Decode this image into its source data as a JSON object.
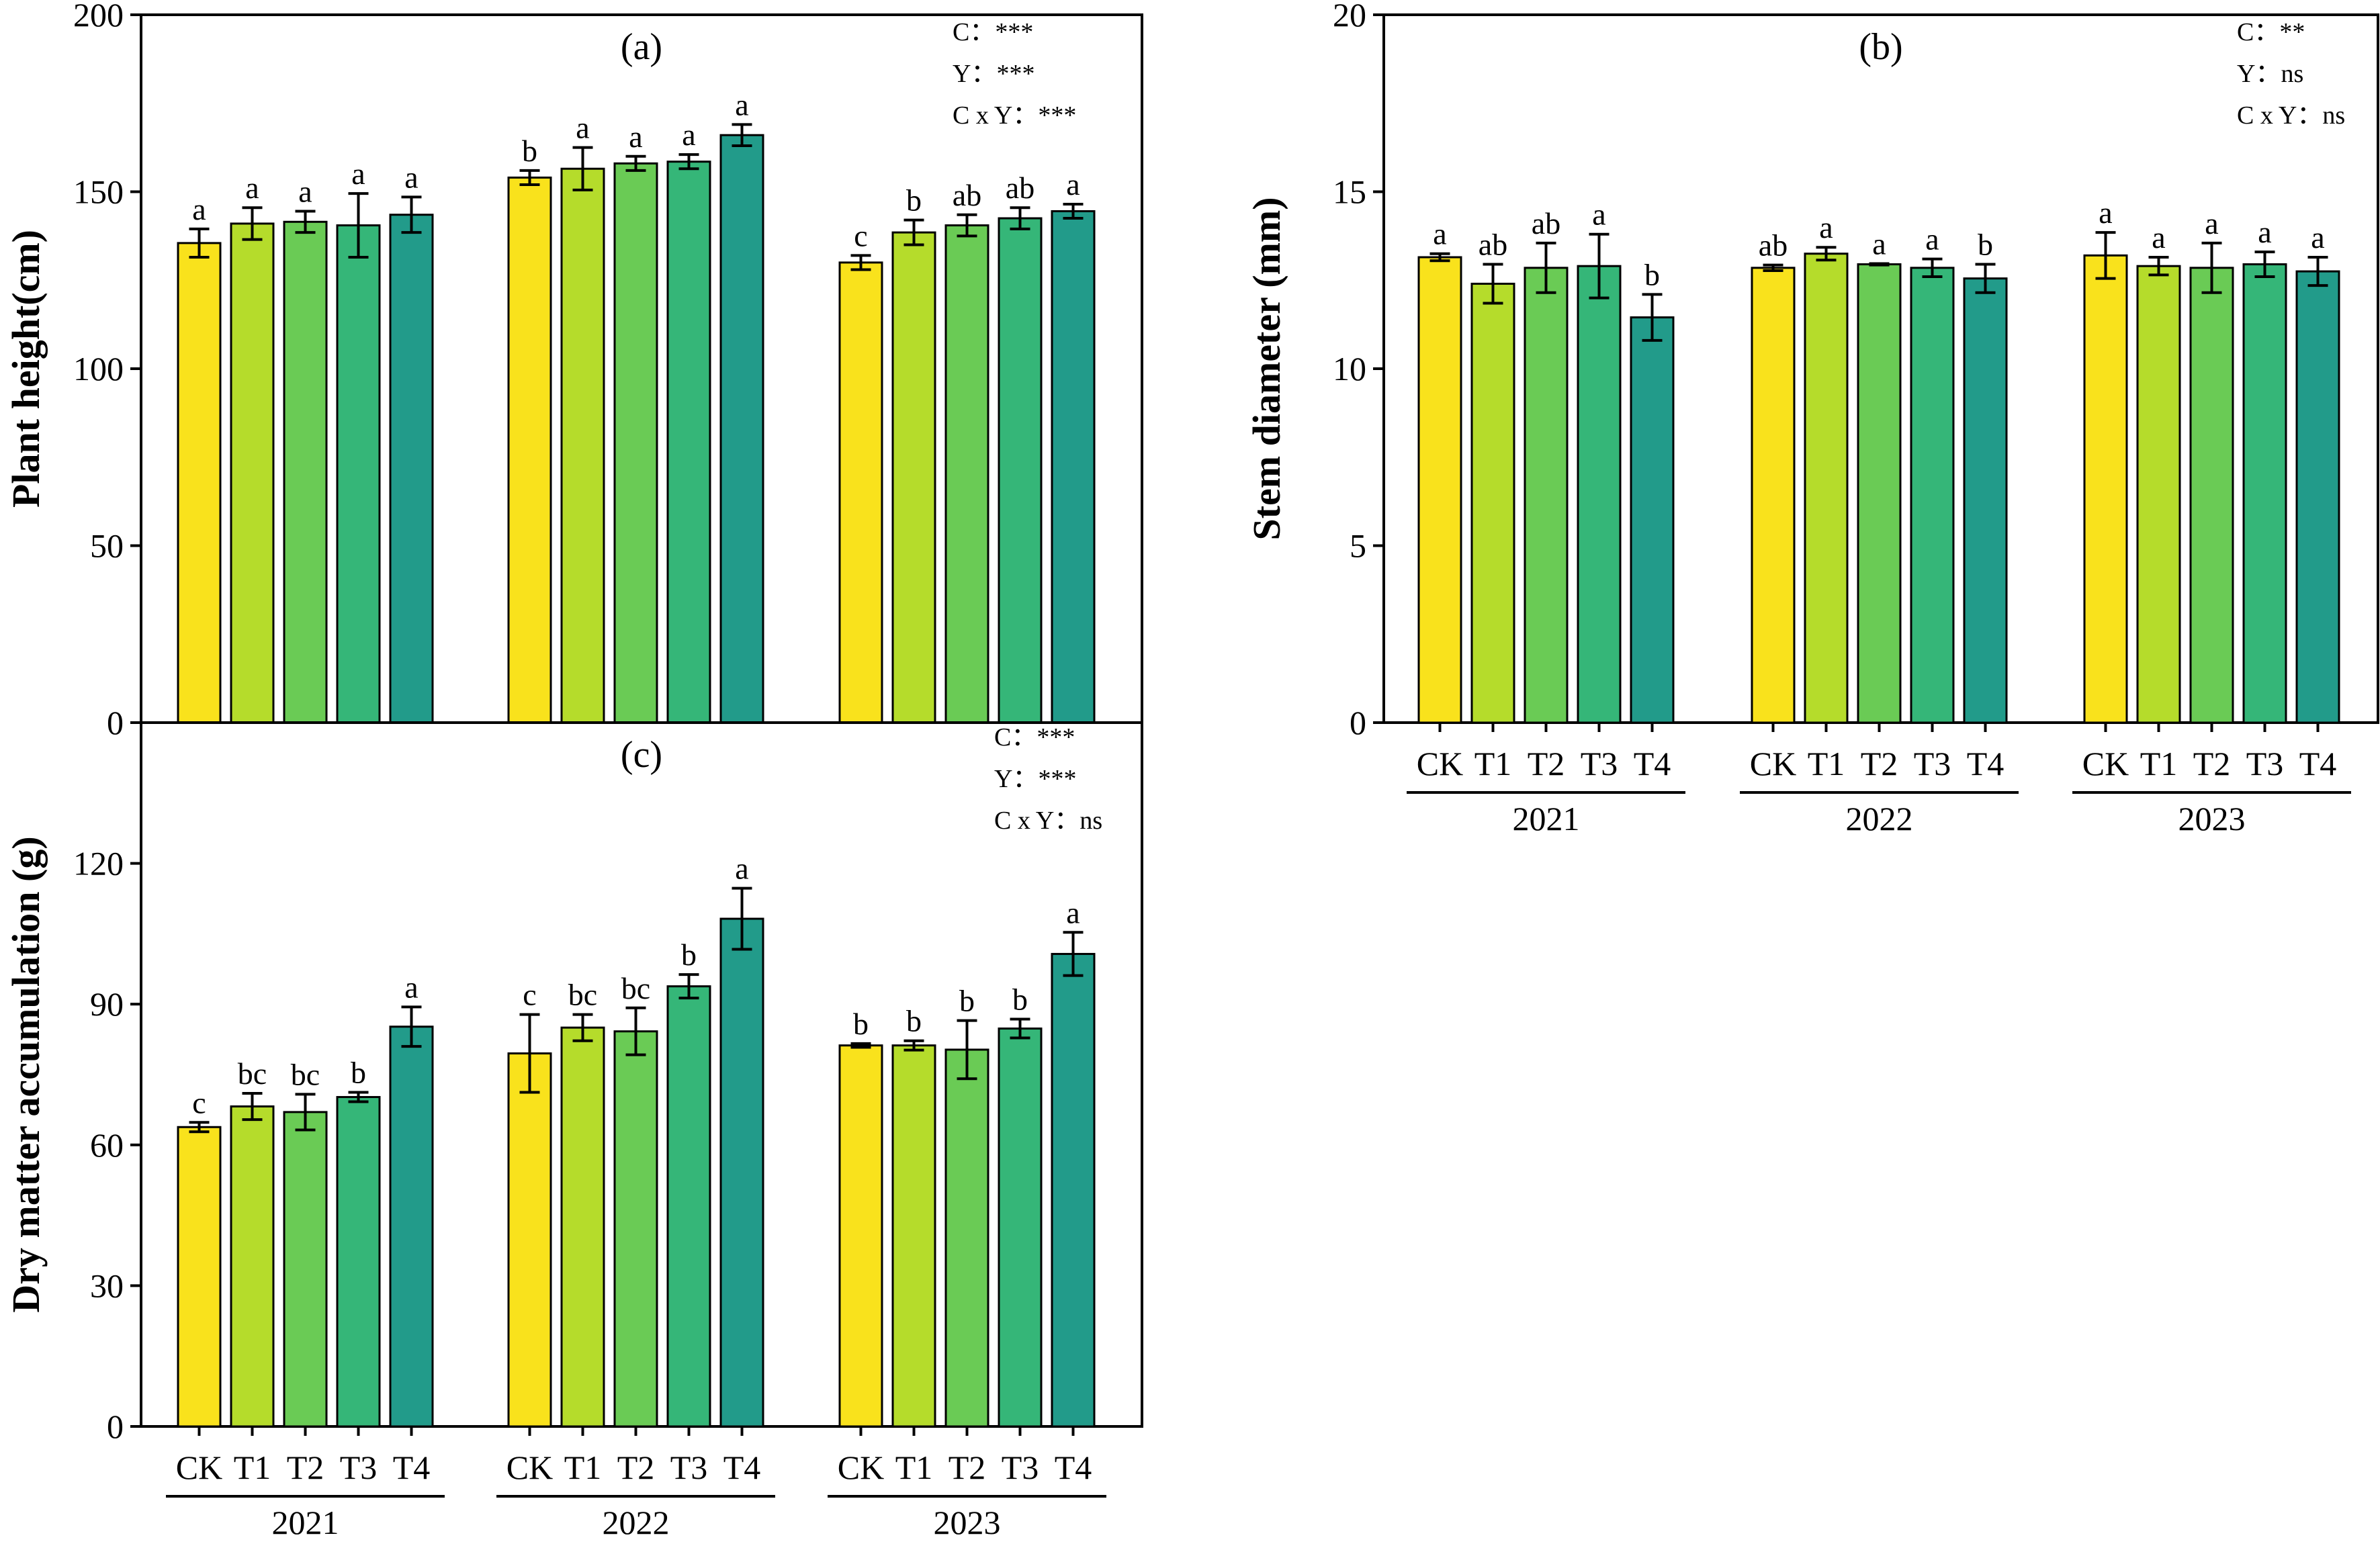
{
  "colors": {
    "CK": "#f9e21c",
    "T1": "#b5dc2b",
    "T2": "#6acb55",
    "T3": "#35b678",
    "T4": "#229b8a"
  },
  "chart_data": [
    {
      "id": "a",
      "type": "bar",
      "panel_label": "(a)",
      "ylabel": "Plant height(cm)",
      "ylim": [
        0,
        200
      ],
      "yticks": [
        0,
        50,
        100,
        150,
        200
      ],
      "years": [
        "2021",
        "2022",
        "2023"
      ],
      "categories": [
        "CK",
        "T1",
        "T2",
        "T3",
        "T4"
      ],
      "show_x_labels": false,
      "stats": [
        "C：***",
        "Y：***",
        "C x Y：***"
      ],
      "values": [
        [
          135.5,
          141,
          141.5,
          140.5,
          143.5
        ],
        [
          154,
          156.5,
          158,
          158.5,
          166
        ],
        [
          130,
          138.5,
          140.5,
          142.5,
          144.5
        ]
      ],
      "errors": [
        [
          4,
          4.5,
          3,
          9,
          5
        ],
        [
          2,
          6,
          2,
          2,
          3
        ],
        [
          2,
          3.5,
          3,
          3,
          2
        ]
      ],
      "significance": [
        [
          "a",
          "a",
          "a",
          "a",
          "a"
        ],
        [
          "b",
          "a",
          "a",
          "a",
          "a"
        ],
        [
          "c",
          "b",
          "ab",
          "ab",
          "a"
        ]
      ]
    },
    {
      "id": "b",
      "type": "bar",
      "panel_label": "(b)",
      "ylabel": "Stem diameter (mm)",
      "ylim": [
        0,
        20
      ],
      "yticks": [
        0,
        5,
        10,
        15,
        20
      ],
      "years": [
        "2021",
        "2022",
        "2023"
      ],
      "categories": [
        "CK",
        "T1",
        "T2",
        "T3",
        "T4"
      ],
      "show_x_labels": true,
      "stats": [
        "C：**",
        "Y：ns",
        "C x Y：ns"
      ],
      "values": [
        [
          13.15,
          12.4,
          12.85,
          12.9,
          11.45
        ],
        [
          12.85,
          13.25,
          12.95,
          12.85,
          12.55
        ],
        [
          13.2,
          12.9,
          12.85,
          12.95,
          12.75
        ]
      ],
      "errors": [
        [
          0.1,
          0.55,
          0.7,
          0.9,
          0.65
        ],
        [
          0.08,
          0.18,
          0.02,
          0.25,
          0.4
        ],
        [
          0.65,
          0.25,
          0.7,
          0.35,
          0.4
        ]
      ],
      "significance": [
        [
          "a",
          "ab",
          "ab",
          "a",
          "b"
        ],
        [
          "ab",
          "a",
          "a",
          "a",
          "b"
        ],
        [
          "a",
          "a",
          "a",
          "a",
          "a"
        ]
      ]
    },
    {
      "id": "c",
      "type": "bar",
      "panel_label": "(c)",
      "ylabel": "Dry matter accumulation  (g)",
      "ylim": [
        0,
        150
      ],
      "yticks": [
        0,
        30,
        60,
        90,
        120
      ],
      "years": [
        "2021",
        "2022",
        "2023"
      ],
      "categories": [
        "CK",
        "T1",
        "T2",
        "T3",
        "T4"
      ],
      "show_x_labels": true,
      "stats": [
        "C：***",
        "Y：***",
        "C x Y：ns"
      ],
      "values": [
        [
          63.8,
          68.2,
          67,
          70.2,
          85.2
        ],
        [
          79.5,
          85,
          84.2,
          93.8,
          108.2
        ],
        [
          81.2,
          81.2,
          80.3,
          84.8,
          100.7
        ]
      ],
      "errors": [
        [
          1,
          2.8,
          3.8,
          1,
          4.2
        ],
        [
          8.3,
          2.8,
          5,
          2.5,
          6.5
        ],
        [
          0.4,
          1,
          6.2,
          2,
          4.6
        ]
      ],
      "significance": [
        [
          "c",
          "bc",
          "bc",
          "b",
          "a"
        ],
        [
          "c",
          "bc",
          "bc",
          "b",
          "a"
        ],
        [
          "b",
          "b",
          "b",
          "b",
          "a"
        ]
      ]
    }
  ]
}
